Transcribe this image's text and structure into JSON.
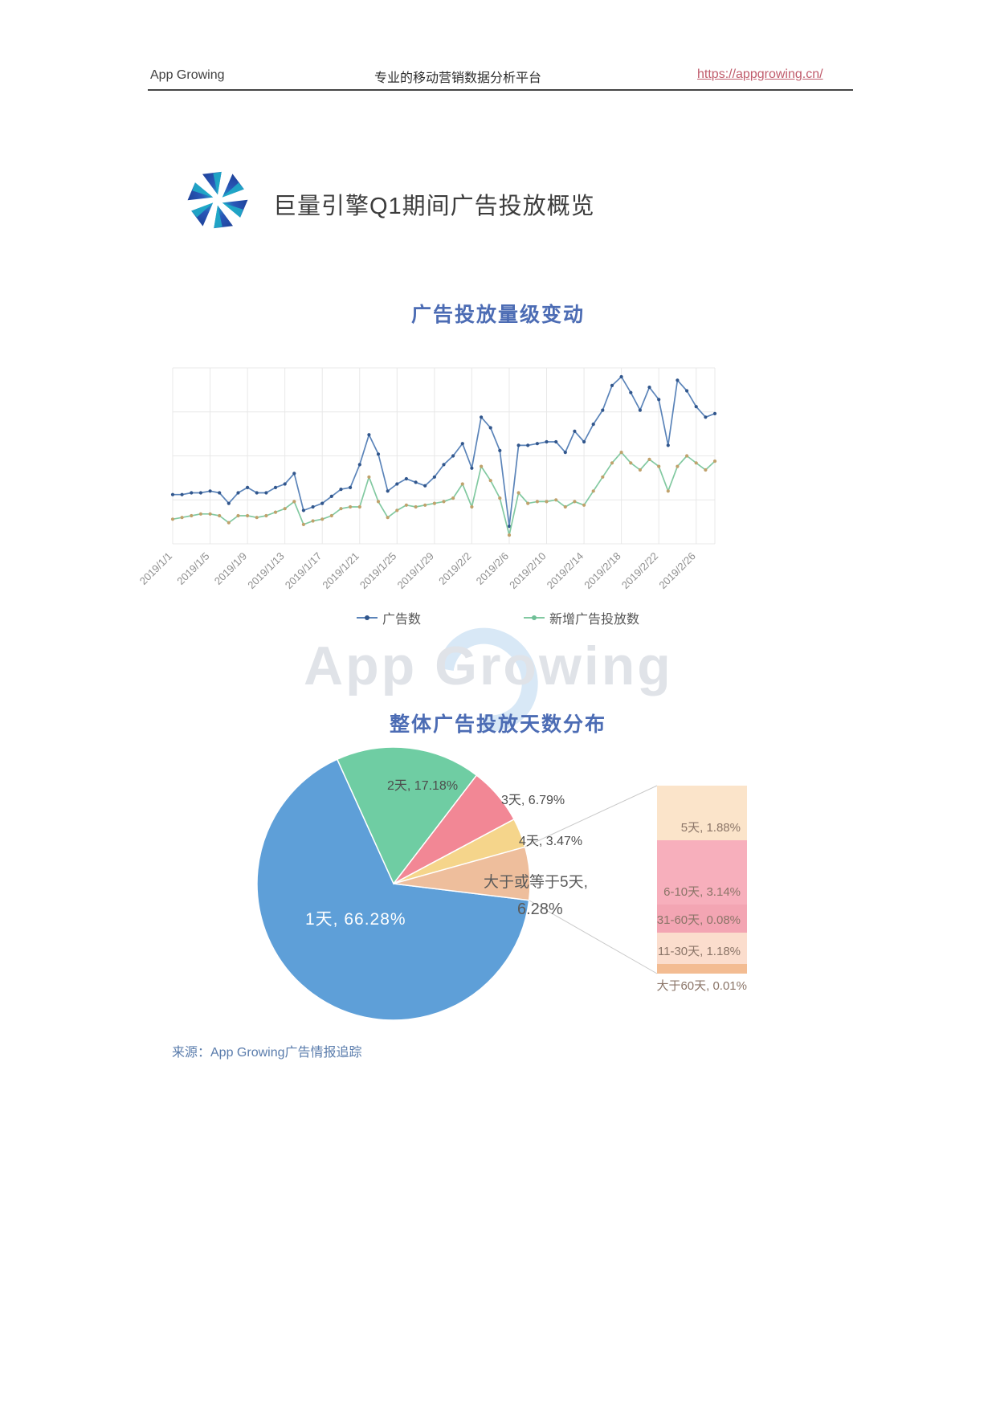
{
  "header": {
    "brand": "App Growing",
    "tagline": "专业的移动营销数据分析平台",
    "link": "https://appgrowing.cn/",
    "link_color": "#c05c6c"
  },
  "hero": {
    "title": "巨量引擎Q1期间广告投放概览"
  },
  "watermark": {
    "text": "App Growing"
  },
  "legend_note": {
    "series1": "广告数",
    "series2": "新增广告投放数"
  },
  "pie_labels": {
    "s1": "1天, 66.28%",
    "s2": "2天, 17.18%",
    "s3": "3天, 6.79%",
    "s4": "4天, 3.47%",
    "ge5_line1": "大于或等于5天,",
    "ge5_line2": "6.28%",
    "b1": "5天, 1.88%",
    "b2": "6-10天, 3.14%",
    "b3": "31-60天, 0.08%",
    "b4": "11-30天, 1.18%",
    "b5": "大于60天, 0.01%"
  },
  "source_note": "来源：App Growing广告情报追踪",
  "chart_data": [
    {
      "type": "line",
      "title": "广告投放量级变动",
      "x_labels": [
        "2019/1/1",
        "2019/1/5",
        "2019/1/9",
        "2019/1/13",
        "2019/1/17",
        "2019/1/21",
        "2019/1/25",
        "2019/1/29",
        "2019/2/2",
        "2019/2/6",
        "2019/2/10",
        "2019/2/14",
        "2019/2/18",
        "2019/2/22",
        "2019/2/26"
      ],
      "tick_every": 4,
      "grid": true,
      "y_axis_labels_visible": false,
      "ylim": [
        0,
        100
      ],
      "note": "no y-axis tick labels shown; values are relative estimates of curve height",
      "series": [
        {
          "name": "广告数",
          "color": "#5b84b9",
          "marker_color": "#31568c",
          "values": [
            28,
            28,
            29,
            29,
            30,
            29,
            23,
            29,
            32,
            29,
            29,
            32,
            34,
            40,
            19,
            21,
            23,
            27,
            31,
            32,
            45,
            62,
            51,
            30,
            34,
            37,
            35,
            33,
            38,
            45,
            50,
            57,
            43,
            72,
            66,
            53,
            10,
            56,
            56,
            57,
            58,
            58,
            52,
            64,
            58,
            68,
            76,
            90,
            95,
            86,
            76,
            89,
            82,
            56,
            93,
            87,
            78,
            72,
            74
          ]
        },
        {
          "name": "新增广告投放数",
          "color": "#82c9a1",
          "marker_color": "#c0a26c",
          "values": [
            14,
            15,
            16,
            17,
            17,
            16,
            12,
            16,
            16,
            15,
            16,
            18,
            20,
            24,
            11,
            13,
            14,
            16,
            20,
            21,
            21,
            38,
            24,
            15,
            19,
            22,
            21,
            22,
            23,
            24,
            26,
            34,
            21,
            44,
            36,
            26,
            5,
            29,
            23,
            24,
            24,
            25,
            21,
            24,
            22,
            30,
            38,
            46,
            52,
            46,
            42,
            48,
            44,
            30,
            44,
            50,
            46,
            42,
            47
          ]
        }
      ],
      "legend_position": "bottom"
    },
    {
      "type": "pie",
      "title": "整体广告投放天数分布",
      "slices": [
        {
          "label": "1天",
          "pct": 66.28,
          "color": "#5E9FD8"
        },
        {
          "label": "2天",
          "pct": 17.18,
          "color": "#6FCDA3"
        },
        {
          "label": "3天",
          "pct": 6.79,
          "color": "#F28795"
        },
        {
          "label": "4天",
          "pct": 3.47,
          "color": "#F5D58B"
        },
        {
          "label": "大于或等于5天",
          "pct": 6.28,
          "color": "#EEBE9C"
        }
      ],
      "breakout": [
        {
          "label": "5天",
          "pct": 1.88,
          "color": "#FBE4CA"
        },
        {
          "label": "6-10天",
          "pct": 3.14,
          "color": "#F7AFBC"
        },
        {
          "label": "31-60天",
          "pct": 0.08,
          "color": "#F3A5B3"
        },
        {
          "label": "11-30天",
          "pct": 1.18,
          "color": "#FBDDCD"
        },
        {
          "label": "大于60天",
          "pct": 0.01,
          "color": "#F3BC92"
        }
      ]
    }
  ]
}
